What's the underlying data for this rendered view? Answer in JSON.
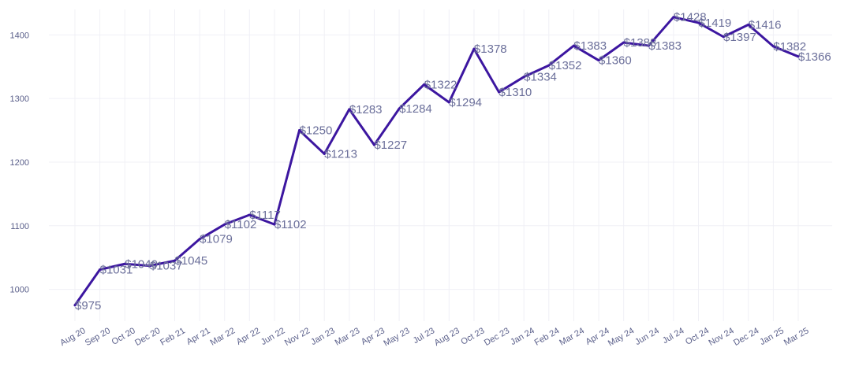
{
  "chart_data": {
    "type": "line",
    "title": "",
    "xlabel": "",
    "ylabel": "",
    "grid": true,
    "legend": "none",
    "ylim": [
      950,
      1440
    ],
    "y_ticks": [
      "1000",
      "1100",
      "1200",
      "1300",
      "1400"
    ],
    "y_tick_values": [
      1000,
      1100,
      1200,
      1300,
      1400
    ],
    "categories": [
      "Aug 20",
      "Sep 20",
      "Oct 20",
      "Dec 20",
      "Feb 21",
      "Apr 21",
      "Mar 22",
      "Apr 22",
      "Jun 22",
      "Nov 22",
      "Jan 23",
      "Mar 23",
      "Apr 23",
      "May 23",
      "Jul 23",
      "Aug 23",
      "Oct 23",
      "Dec 23",
      "Jan 24",
      "Feb 24",
      "Mar 24",
      "Apr 24",
      "May 24",
      "Jun 24",
      "Jul 24",
      "Oct 24",
      "Nov 24",
      "Dec 24",
      "Jan 25",
      "Mar 25"
    ],
    "series": [
      {
        "color": "#3c16a0",
        "values": [
          975,
          1031,
          1040,
          1037,
          1045,
          1079,
          1102,
          1117,
          1102,
          1250,
          1213,
          1283,
          1227,
          1284,
          1322,
          1294,
          1378,
          1310,
          1334,
          1352,
          1383,
          1360,
          1388,
          1383,
          1428,
          1419,
          1397,
          1416,
          1382,
          1366
        ],
        "labels": [
          "$975",
          "$1031",
          "$1040",
          "$1037",
          "$1045",
          "$1079",
          "$1102",
          "$1117",
          "$1102",
          "$1250",
          "$1213",
          "$1283",
          "$1227",
          "$1284",
          "$1322",
          "$1294",
          "$1378",
          "$1310",
          "$1334",
          "$1352",
          "$1383",
          "$1360",
          "$1388",
          "$1383",
          "$1428",
          "$1419",
          "$1397",
          "$1416",
          "$1382",
          "$1366"
        ]
      }
    ]
  }
}
